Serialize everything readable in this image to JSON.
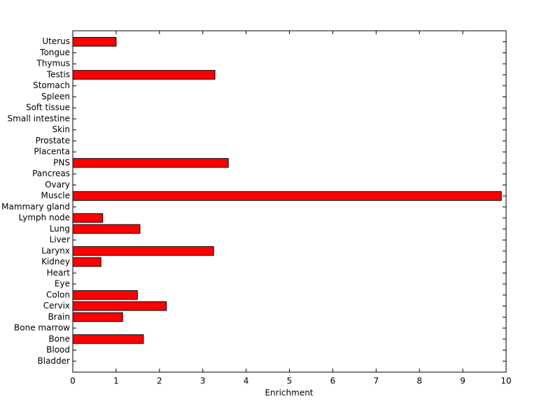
{
  "chart_data": {
    "type": "barh",
    "xlabel": "Enrichment",
    "categories": [
      "Bladder",
      "Blood",
      "Bone",
      "Bone marrow",
      "Brain",
      "Cervix",
      "Colon",
      "Eye",
      "Heart",
      "Kidney",
      "Larynx",
      "Liver",
      "Lung",
      "Lymph node",
      "Mammary gland",
      "Muscle",
      "Ovary",
      "Pancreas",
      "PNS",
      "Placenta",
      "Prostate",
      "Skin",
      "Small intestine",
      "Soft tissue",
      "Spleen",
      "Stomach",
      "Testis",
      "Thymus",
      "Tongue",
      "Uterus"
    ],
    "values": [
      0,
      0,
      1.63,
      0,
      1.15,
      2.16,
      1.49,
      0,
      0,
      0.65,
      3.25,
      0,
      1.55,
      0.69,
      0,
      9.89,
      0,
      0,
      3.59,
      0,
      0,
      0,
      0,
      0,
      0,
      0,
      3.28,
      0,
      0,
      1.0
    ],
    "color": "#ff0000",
    "xlim": [
      0,
      10
    ],
    "xticks": [
      0,
      1,
      2,
      3,
      4,
      5,
      6,
      7,
      8,
      9,
      10
    ]
  }
}
